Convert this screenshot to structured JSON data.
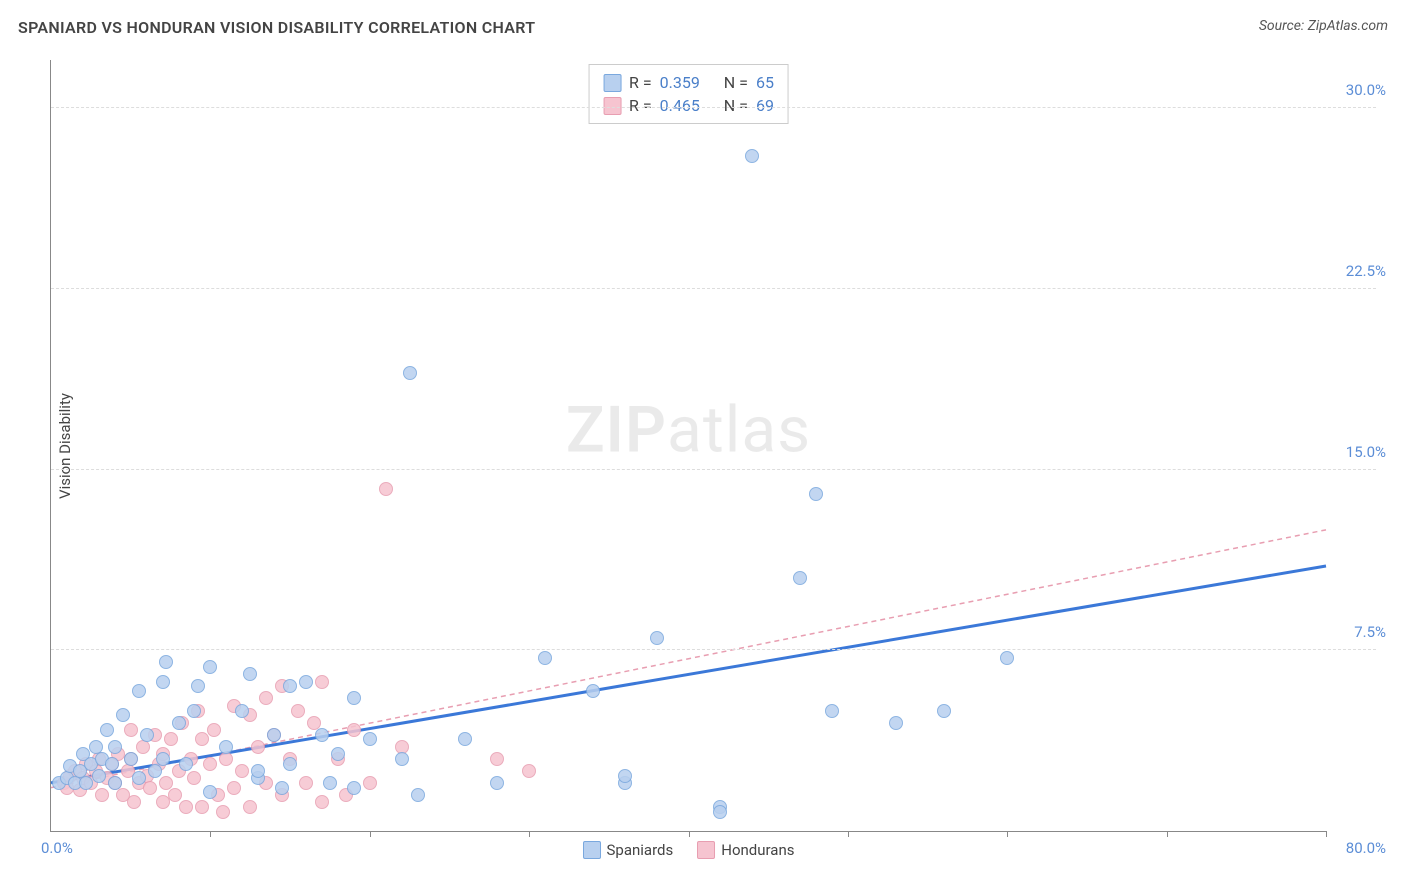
{
  "header": {
    "title": "SPANIARD VS HONDURAN VISION DISABILITY CORRELATION CHART",
    "source": "Source: ZipAtlas.com"
  },
  "axes": {
    "ylabel": "Vision Disability",
    "xlim": [
      0,
      80
    ],
    "ylim": [
      0,
      32
    ],
    "xtick_start": "0.0%",
    "xtick_end": "80.0%",
    "xtick_marks": [
      10,
      20,
      30,
      40,
      50,
      60,
      70,
      80
    ],
    "yticks": [
      {
        "v": 7.5,
        "label": "7.5%"
      },
      {
        "v": 15.0,
        "label": "15.0%"
      },
      {
        "v": 22.5,
        "label": "22.5%"
      },
      {
        "v": 30.0,
        "label": "30.0%"
      }
    ],
    "grid_color": "#dddddd",
    "axis_color": "#888888"
  },
  "series": {
    "spaniards": {
      "label": "Spaniards",
      "r_value": "0.359",
      "n_value": "65",
      "point_fill": "#b8d0ef",
      "point_stroke": "#7aa8de",
      "point_radius": 7,
      "trend_color": "#3b78d8",
      "trend_width": 3,
      "trend_dash": "none",
      "trend": {
        "x1": 0,
        "y1": 2.0,
        "x2": 80,
        "y2": 11.0
      },
      "points": [
        [
          0.5,
          2.0
        ],
        [
          1.0,
          2.2
        ],
        [
          1.2,
          2.7
        ],
        [
          1.5,
          2.0
        ],
        [
          1.8,
          2.5
        ],
        [
          2.0,
          3.2
        ],
        [
          2.2,
          2.0
        ],
        [
          2.5,
          2.8
        ],
        [
          2.8,
          3.5
        ],
        [
          3.0,
          2.3
        ],
        [
          3.2,
          3.0
        ],
        [
          3.5,
          4.2
        ],
        [
          3.8,
          2.8
        ],
        [
          4.0,
          3.5
        ],
        [
          4.0,
          2.0
        ],
        [
          4.5,
          4.8
        ],
        [
          5.0,
          3.0
        ],
        [
          5.5,
          5.8
        ],
        [
          5.5,
          2.2
        ],
        [
          6.0,
          4.0
        ],
        [
          6.5,
          2.5
        ],
        [
          7.0,
          6.2
        ],
        [
          7.0,
          3.0
        ],
        [
          7.2,
          7.0
        ],
        [
          8.0,
          4.5
        ],
        [
          8.5,
          2.8
        ],
        [
          9.0,
          5.0
        ],
        [
          9.2,
          6.0
        ],
        [
          10.0,
          1.6
        ],
        [
          10.0,
          6.8
        ],
        [
          11.0,
          3.5
        ],
        [
          12.0,
          5.0
        ],
        [
          12.5,
          6.5
        ],
        [
          13.0,
          2.2
        ],
        [
          13.0,
          2.5
        ],
        [
          14.0,
          4.0
        ],
        [
          14.5,
          1.8
        ],
        [
          15.0,
          6.0
        ],
        [
          15.0,
          2.8
        ],
        [
          16.0,
          6.2
        ],
        [
          17.0,
          4.0
        ],
        [
          17.5,
          2.0
        ],
        [
          18.0,
          3.2
        ],
        [
          19.0,
          5.5
        ],
        [
          19.0,
          1.8
        ],
        [
          20.0,
          3.8
        ],
        [
          22.0,
          3.0
        ],
        [
          22.5,
          19.0
        ],
        [
          23.0,
          1.5
        ],
        [
          26.0,
          3.8
        ],
        [
          28.0,
          2.0
        ],
        [
          31.0,
          7.2
        ],
        [
          34.0,
          5.8
        ],
        [
          36.0,
          2.0
        ],
        [
          36.0,
          2.3
        ],
        [
          38.0,
          8.0
        ],
        [
          42.0,
          1.0
        ],
        [
          42.0,
          0.8
        ],
        [
          44.0,
          28.0
        ],
        [
          47.0,
          10.5
        ],
        [
          48.0,
          14.0
        ],
        [
          49.0,
          5.0
        ],
        [
          53.0,
          4.5
        ],
        [
          56.0,
          5.0
        ],
        [
          60.0,
          7.2
        ]
      ]
    },
    "hondurans": {
      "label": "Hondurans",
      "r_value": "0.465",
      "n_value": "69",
      "point_fill": "#f6c4d0",
      "point_stroke": "#e89eb1",
      "point_radius": 7,
      "trend_color": "#e89eb1",
      "trend_width": 1.5,
      "trend_dash": "5,4",
      "trend": {
        "x1": 0,
        "y1": 1.8,
        "x2": 80,
        "y2": 12.5
      },
      "points": [
        [
          0.8,
          2.0
        ],
        [
          1.0,
          1.8
        ],
        [
          1.2,
          2.3
        ],
        [
          1.5,
          2.5
        ],
        [
          1.8,
          1.7
        ],
        [
          2.0,
          2.2
        ],
        [
          2.2,
          2.8
        ],
        [
          2.5,
          2.0
        ],
        [
          2.8,
          2.5
        ],
        [
          3.0,
          3.0
        ],
        [
          3.2,
          1.5
        ],
        [
          3.5,
          2.2
        ],
        [
          3.8,
          2.8
        ],
        [
          4.0,
          2.0
        ],
        [
          4.2,
          3.2
        ],
        [
          4.5,
          1.5
        ],
        [
          4.8,
          2.5
        ],
        [
          5.0,
          3.0
        ],
        [
          5.0,
          4.2
        ],
        [
          5.2,
          1.2
        ],
        [
          5.5,
          2.0
        ],
        [
          5.8,
          3.5
        ],
        [
          6.0,
          2.3
        ],
        [
          6.2,
          1.8
        ],
        [
          6.5,
          4.0
        ],
        [
          6.8,
          2.8
        ],
        [
          7.0,
          3.2
        ],
        [
          7.0,
          1.2
        ],
        [
          7.2,
          2.0
        ],
        [
          7.5,
          3.8
        ],
        [
          7.8,
          1.5
        ],
        [
          8.0,
          2.5
        ],
        [
          8.2,
          4.5
        ],
        [
          8.5,
          1.0
        ],
        [
          8.8,
          3.0
        ],
        [
          9.0,
          2.2
        ],
        [
          9.2,
          5.0
        ],
        [
          9.5,
          3.8
        ],
        [
          9.5,
          1.0
        ],
        [
          10.0,
          2.8
        ],
        [
          10.2,
          4.2
        ],
        [
          10.5,
          1.5
        ],
        [
          10.8,
          0.8
        ],
        [
          11.0,
          3.0
        ],
        [
          11.5,
          5.2
        ],
        [
          11.5,
          1.8
        ],
        [
          12.0,
          2.5
        ],
        [
          12.5,
          4.8
        ],
        [
          12.5,
          1.0
        ],
        [
          13.0,
          3.5
        ],
        [
          13.5,
          5.5
        ],
        [
          13.5,
          2.0
        ],
        [
          14.0,
          4.0
        ],
        [
          14.5,
          6.0
        ],
        [
          14.5,
          1.5
        ],
        [
          15.0,
          3.0
        ],
        [
          15.5,
          5.0
        ],
        [
          16.0,
          2.0
        ],
        [
          16.5,
          4.5
        ],
        [
          17.0,
          1.2
        ],
        [
          17.0,
          6.2
        ],
        [
          18.0,
          3.0
        ],
        [
          18.5,
          1.5
        ],
        [
          19.0,
          4.2
        ],
        [
          20.0,
          2.0
        ],
        [
          21.0,
          14.2
        ],
        [
          22.0,
          3.5
        ],
        [
          28.0,
          3.0
        ],
        [
          30.0,
          2.5
        ]
      ]
    }
  },
  "watermark": {
    "bold": "ZIP",
    "light": "atlas"
  },
  "colors": {
    "title_color": "#444444",
    "tick_text": "#5b8dd6",
    "background": "#ffffff"
  }
}
